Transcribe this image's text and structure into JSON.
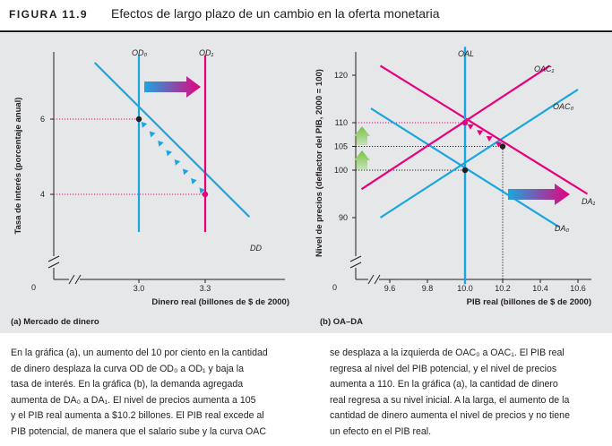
{
  "figure": {
    "label": "FIGURA 11.9",
    "title": "Efectos de largo plazo de un cambio en la oferta monetaria"
  },
  "colors": {
    "cyan": "#1aa6df",
    "magenta": "#e6007e",
    "panel_bg": "#e6e7e8"
  },
  "chart_data": [
    {
      "type": "line",
      "ylabel": "Tasa de interés (porcentaje anual)",
      "xlabel": "Dinero real (billones de $ de 2000)",
      "origin_label": "0",
      "y_ticks": [
        "6",
        "4"
      ],
      "x_ticks": [
        "3.0",
        "3.3"
      ],
      "series": [
        {
          "name": "OD₀",
          "x": [
            3.0,
            3.0
          ],
          "y": [
            3.0,
            7.7
          ]
        },
        {
          "name": "OD₁",
          "x": [
            3.3,
            3.3
          ],
          "y": [
            3.0,
            7.7
          ]
        },
        {
          "name": "DD",
          "x": [
            2.8,
            3.5
          ],
          "y": [
            7.5,
            3.4
          ]
        }
      ],
      "points": [
        {
          "x": 3.0,
          "y": 6
        },
        {
          "x": 3.3,
          "y": 4
        }
      ],
      "caption": "(a) Mercado de dinero"
    },
    {
      "type": "line",
      "ylabel": "Nivel de precios (deflactor del PIB, 2000 = 100)",
      "xlabel": "PIB real (billones de $ de 2000)",
      "origin_label": "0",
      "y_ticks": [
        "120",
        "110",
        "105",
        "100",
        "90"
      ],
      "x_ticks": [
        "9.6",
        "9.8",
        "10.0",
        "10.2",
        "10.4",
        "10.6"
      ],
      "series": [
        {
          "name": "OAL",
          "x": [
            10.0,
            10.0
          ],
          "y": [
            76,
            126
          ]
        },
        {
          "name": "OAC₀",
          "x": [
            9.55,
            10.6
          ],
          "y": [
            90,
            117
          ]
        },
        {
          "name": "OAC₁",
          "x": [
            9.45,
            10.45
          ],
          "y": [
            96,
            122
          ]
        },
        {
          "name": "DA₀",
          "x": [
            9.5,
            10.5
          ],
          "y": [
            113,
            88
          ]
        },
        {
          "name": "DA₁",
          "x": [
            9.55,
            10.65
          ],
          "y": [
            122,
            95
          ]
        }
      ],
      "points": [
        {
          "x": 10.0,
          "y": 100
        },
        {
          "x": 10.2,
          "y": 105
        },
        {
          "x": 10.0,
          "y": 110
        }
      ],
      "caption": "(b) OA–DA"
    }
  ],
  "text": {
    "left": [
      "En la gráfica (a), un aumento del 10 por ciento en la cantidad",
      "de dinero desplaza la curva OD de OD₀ a OD₁ y baja la",
      "tasa de interés. En la gráfica (b), la demanda agregada",
      "aumenta de DA₀ a DA₁. El nivel de precios aumenta a 105",
      "y el PIB real aumenta a $10.2 billones. El PIB real excede al",
      "PIB potencial, de manera que el salario sube y la curva OAC"
    ],
    "right": [
      "se desplaza a la izquierda de OAC₀ a OAC₁. El PIB real",
      "regresa al nivel del PIB potencial, y el nivel de precios",
      "aumenta a 110. En la gráfica (a), la cantidad de dinero",
      "real regresa a su nivel inicial. A la larga, el aumento de la",
      "cantidad de dinero aumenta el nivel de precios y no tiene",
      "un efecto en el PIB real."
    ]
  }
}
